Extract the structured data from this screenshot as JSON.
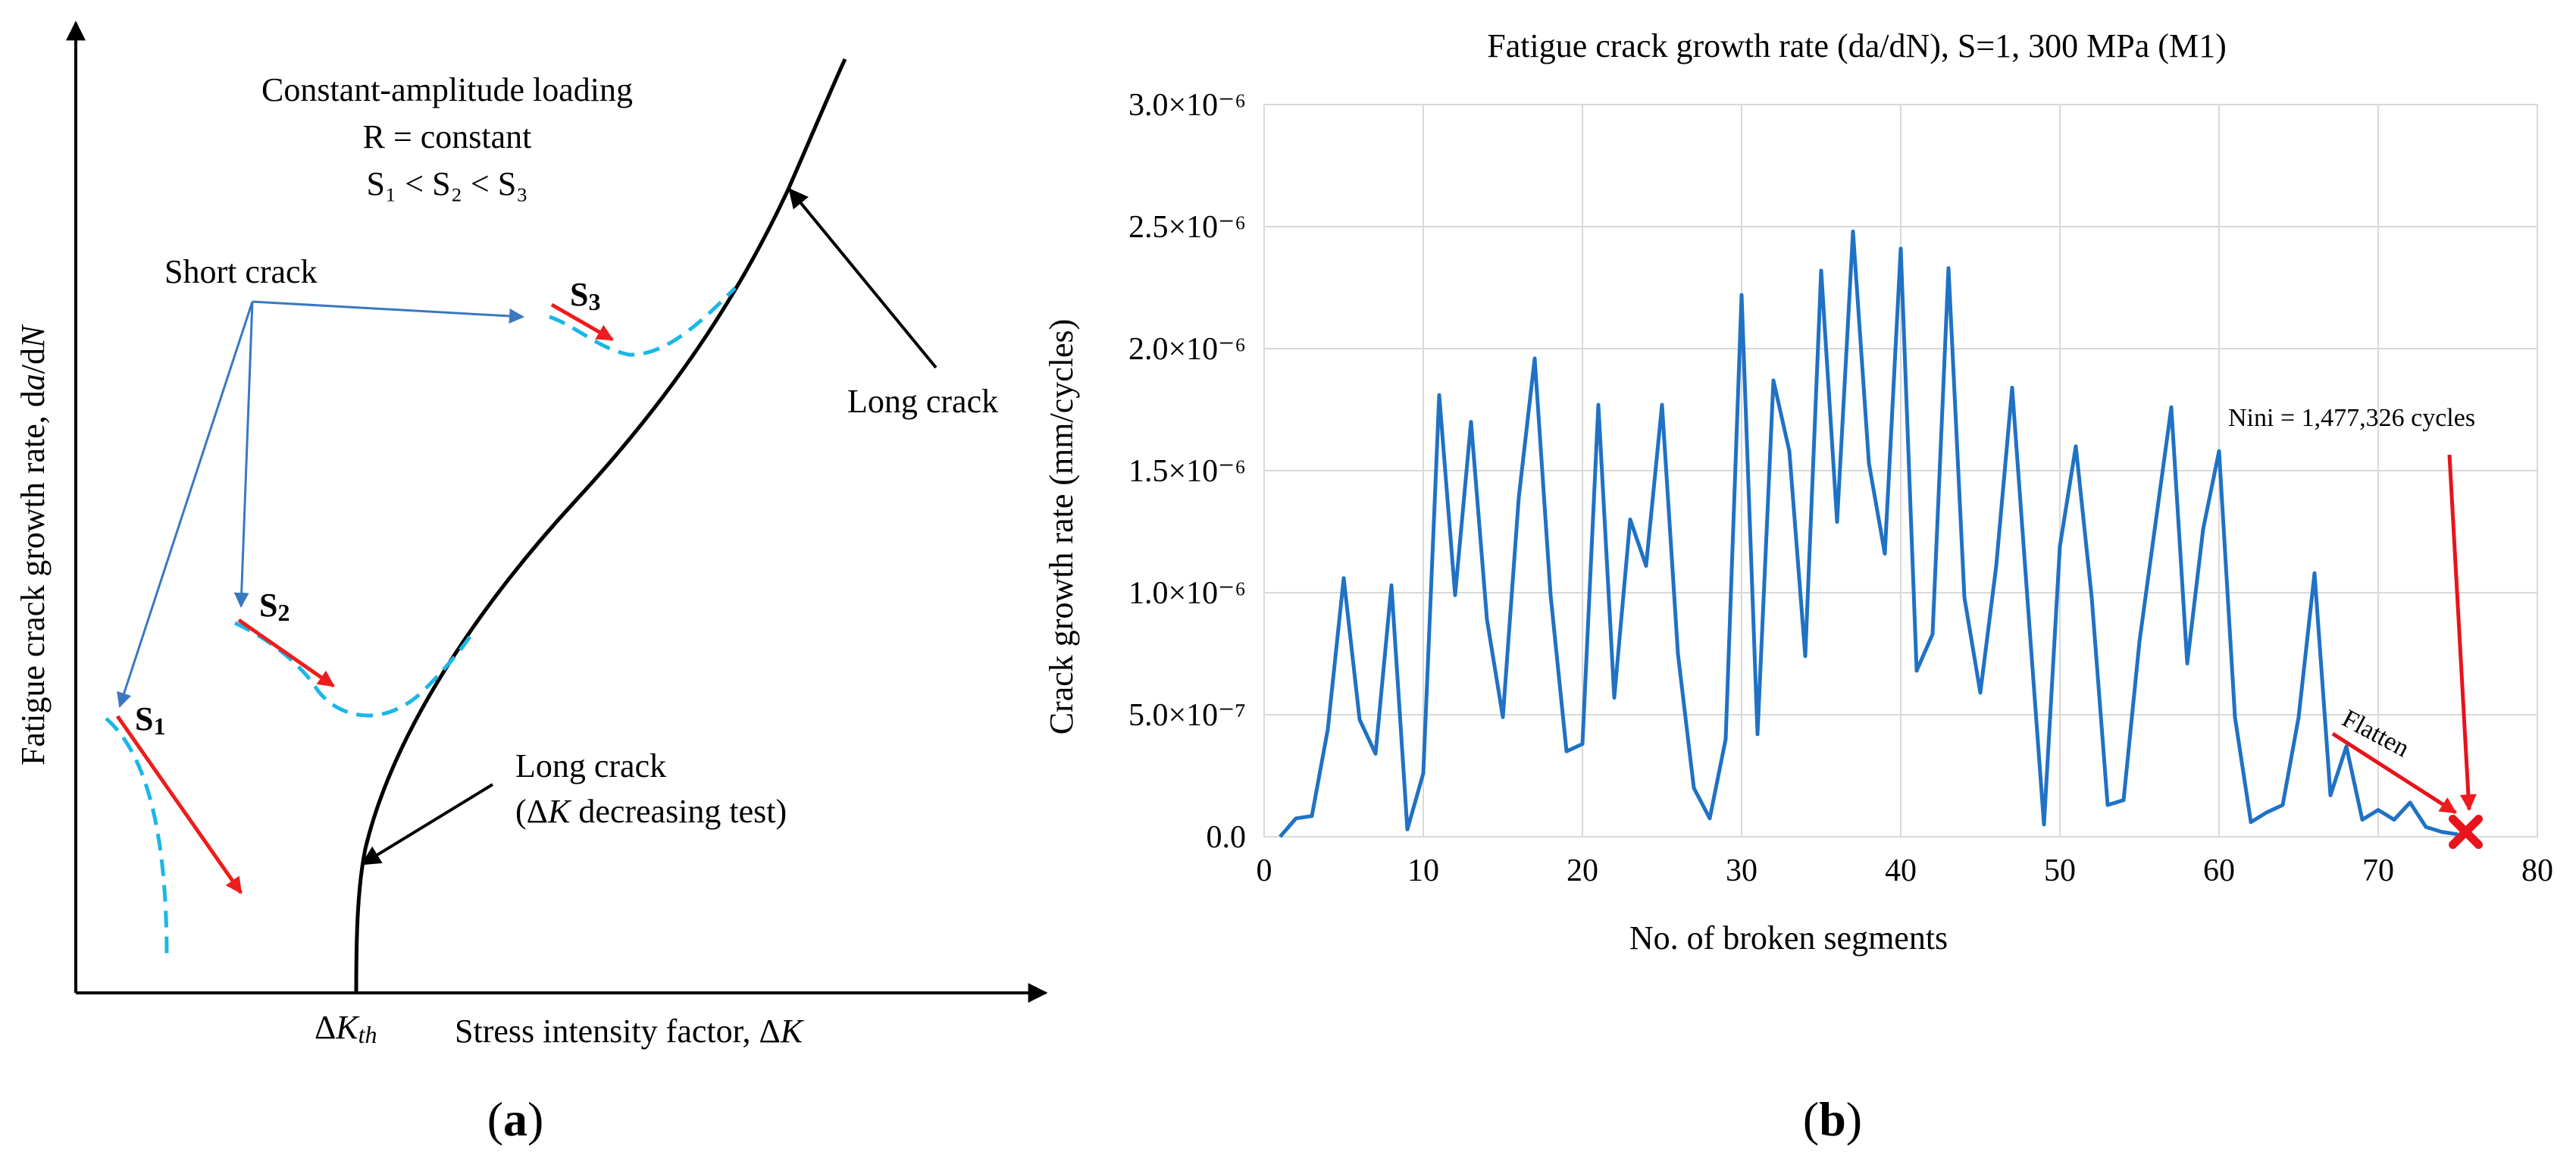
{
  "panel_a": {
    "label_open": "(",
    "label_letter": "a",
    "label_close": ")",
    "y_axis_label_main": "Fatigue crack growth rate, d",
    "y_axis_label_a": "a",
    "y_axis_label_slash": "/d",
    "y_axis_label_N": "N",
    "x_axis_label_main": "Stress intensity factor, Δ",
    "x_axis_label_K": "K",
    "dk_th_delta": "Δ",
    "dk_th_K": "K",
    "dk_th_sub": "th",
    "loading_title": "Constant-amplitude loading",
    "loading_R": "R = constant",
    "loading_S_order": "S₁ < S₂ < S₃",
    "short_crack": "Short crack",
    "long_crack": "Long crack",
    "long_crack_2": "Long crack",
    "long_crack_test_open": "(Δ",
    "long_crack_test_K": "K",
    "long_crack_test_rest": " decreasing test)",
    "s1": "S",
    "s1_sub": "1",
    "s2": "S",
    "s2_sub": "2",
    "s3": "S",
    "s3_sub": "3",
    "colors": {
      "curve": "#000000",
      "dashed": "#1ab7e8",
      "red_arrow": "#ee1c1c",
      "pointer": "#3a78c0"
    }
  },
  "panel_b": {
    "label_open": "(",
    "label_letter": "b",
    "label_close": ")",
    "annotation_nini": "Nini = 1,477,326 cycles",
    "annotation_flatten": "Flatten",
    "colors": {
      "line": "#1f72c4",
      "grid": "#d9d9d9",
      "marker": "#e8131b",
      "arrow": "#e8131b"
    }
  },
  "chart_data": [
    {
      "type": "line",
      "title": "Fatigue crack growth rate (da/dN), S=1, 300 MPa (M1)",
      "xlabel": "No. of broken segments",
      "ylabel": "Crack growth rate (mm/cycles)",
      "xlim": [
        0,
        80
      ],
      "ylim": [
        0,
        3e-06
      ],
      "x_ticks": [
        "0",
        "10",
        "20",
        "30",
        "40",
        "50",
        "60",
        "70",
        "80"
      ],
      "y_ticks": [
        "0.0",
        "5.0×10⁻⁷",
        "1.0×10⁻⁶",
        "1.5×10⁻⁶",
        "2.0×10⁻⁶",
        "2.5×10⁻⁶",
        "3.0×10⁻⁶"
      ],
      "grid": true,
      "series": [
        {
          "name": "da/dN",
          "x": [
            1,
            2,
            3,
            4,
            5,
            6,
            7,
            8,
            9,
            10,
            11,
            12,
            13,
            14,
            15,
            16,
            17,
            18,
            19,
            20,
            21,
            22,
            23,
            24,
            25,
            26,
            27,
            28,
            29,
            30,
            31,
            32,
            33,
            34,
            35,
            36,
            37,
            38,
            39,
            40,
            41,
            42,
            43,
            44,
            45,
            46,
            47,
            48,
            49,
            50,
            51,
            52,
            53,
            54,
            55,
            56,
            57,
            58,
            59,
            60,
            61,
            62,
            63,
            64,
            65,
            66,
            67,
            68,
            69,
            70,
            71,
            72,
            73,
            74,
            75
          ],
          "values": [
            0.0,
            7.5e-08,
            8.5e-08,
            4.4e-07,
            1.06e-06,
            4.8e-07,
            3.4e-07,
            1.03e-06,
            3e-08,
            2.6e-07,
            1.81e-06,
            9.9e-07,
            1.7e-06,
            8.9e-07,
            4.9e-07,
            1.39e-06,
            1.96e-06,
            9.9e-07,
            3.5e-07,
            3.8e-07,
            1.77e-06,
            5.7e-07,
            1.3e-06,
            1.11e-06,
            1.77e-06,
            7.5e-07,
            2e-07,
            7.5e-08,
            4e-07,
            2.22e-06,
            4.2e-07,
            1.87e-06,
            1.58e-06,
            7.4e-07,
            2.32e-06,
            1.29e-06,
            2.48e-06,
            1.53e-06,
            1.16e-06,
            2.41e-06,
            6.8e-07,
            8.3e-07,
            2.33e-06,
            9.8e-07,
            5.9e-07,
            1.11e-06,
            1.84e-06,
            9.4e-07,
            5e-08,
            1.19e-06,
            1.6e-06,
            9.8e-07,
            1.3e-07,
            1.5e-07,
            8e-07,
            1.28e-06,
            1.76e-06,
            7.1e-07,
            1.26e-06,
            1.58e-06,
            4.9e-07,
            6e-08,
            1e-07,
            1.3e-07,
            4.9e-07,
            1.08e-06,
            1.7e-07,
            3.7e-07,
            7e-08,
            1.1e-07,
            7e-08,
            1.4e-07,
            4e-08,
            2e-08,
            1e-08
          ]
        }
      ],
      "marker": {
        "x": 75.5,
        "y": 2e-08,
        "shape": "x"
      }
    }
  ]
}
